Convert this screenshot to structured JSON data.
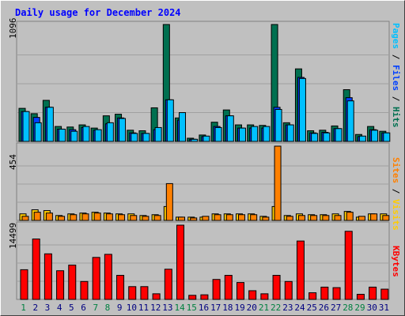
{
  "title": "Daily usage for December 2024",
  "panels": [
    {
      "max_label": "1096",
      "legend": [
        {
          "text": "Pages",
          "color": "#00c0ff"
        },
        {
          "text": " / ",
          "color": "#000000"
        },
        {
          "text": "Files",
          "color": "#0040ff"
        },
        {
          "text": " / ",
          "color": "#000000"
        },
        {
          "text": "Hits",
          "color": "#007050"
        }
      ]
    },
    {
      "max_label": "454",
      "legend": [
        {
          "text": "Sites",
          "color": "#ff8000"
        },
        {
          "text": " / ",
          "color": "#000000"
        },
        {
          "text": "Visits",
          "color": "#ffcc00"
        }
      ]
    },
    {
      "max_label": "14499",
      "legend": [
        {
          "text": "KBytes",
          "color": "#ff0000"
        }
      ]
    }
  ],
  "colors": {
    "hits": "#007050",
    "files": "#0040ff",
    "pages": "#00c0ff",
    "visits": "#ffcc00",
    "sites": "#ff8000",
    "kbytes": "#ff0000",
    "weekend_day": "#008040",
    "weekday_day": "#000080"
  },
  "chart_data": [
    {
      "type": "bar",
      "title": "Daily usage for December 2024",
      "categories": [
        "1",
        "2",
        "3",
        "4",
        "5",
        "6",
        "7",
        "8",
        "9",
        "10",
        "11",
        "12",
        "13",
        "14",
        "15",
        "16",
        "17",
        "18",
        "19",
        "20",
        "21",
        "22",
        "23",
        "24",
        "25",
        "26",
        "27",
        "28",
        "29",
        "30",
        "31"
      ],
      "weekend_days": [
        "1",
        "7",
        "8",
        "14",
        "15",
        "21",
        "22",
        "28",
        "29"
      ],
      "ylim": [
        0,
        1096
      ],
      "series": [
        {
          "name": "Hits",
          "values": [
            310,
            260,
            385,
            140,
            135,
            155,
            125,
            240,
            255,
            105,
            100,
            315,
            1096,
            220,
            30,
            60,
            180,
            295,
            155,
            155,
            150,
            1096,
            175,
            680,
            100,
            105,
            145,
            485,
            65,
            140,
            95
          ]
        },
        {
          "name": "Files",
          "values": [
            280,
            225,
            320,
            115,
            110,
            130,
            105,
            165,
            220,
            80,
            75,
            110,
            390,
            200,
            20,
            45,
            140,
            240,
            125,
            125,
            125,
            320,
            155,
            600,
            80,
            85,
            120,
            410,
            45,
            110,
            80
          ]
        },
        {
          "name": "Pages",
          "values": [
            280,
            175,
            320,
            115,
            95,
            140,
            110,
            175,
            215,
            75,
            75,
            130,
            390,
            270,
            20,
            50,
            130,
            240,
            125,
            140,
            140,
            300,
            155,
            590,
            75,
            80,
            120,
            380,
            50,
            105,
            80
          ]
        }
      ]
    },
    {
      "type": "bar",
      "categories": [
        "1",
        "2",
        "3",
        "4",
        "5",
        "6",
        "7",
        "8",
        "9",
        "10",
        "11",
        "12",
        "13",
        "14",
        "15",
        "16",
        "17",
        "18",
        "19",
        "20",
        "21",
        "22",
        "23",
        "24",
        "25",
        "26",
        "27",
        "28",
        "29",
        "30",
        "31"
      ],
      "ylim": [
        0,
        454
      ],
      "series": [
        {
          "name": "Visits",
          "values": [
            40,
            65,
            60,
            30,
            40,
            45,
            50,
            45,
            40,
            40,
            30,
            35,
            85,
            20,
            20,
            20,
            40,
            40,
            40,
            40,
            25,
            85,
            30,
            40,
            35,
            35,
            40,
            55,
            20,
            40,
            40
          ]
        },
        {
          "name": "Sites",
          "values": [
            25,
            50,
            45,
            25,
            35,
            40,
            45,
            40,
            35,
            30,
            25,
            30,
            225,
            20,
            15,
            25,
            35,
            35,
            35,
            35,
            20,
            454,
            25,
            30,
            30,
            30,
            30,
            50,
            25,
            40,
            30
          ]
        }
      ]
    },
    {
      "type": "bar",
      "categories": [
        "1",
        "2",
        "3",
        "4",
        "5",
        "6",
        "7",
        "8",
        "9",
        "10",
        "11",
        "12",
        "13",
        "14",
        "15",
        "16",
        "17",
        "18",
        "19",
        "20",
        "21",
        "22",
        "23",
        "24",
        "25",
        "26",
        "27",
        "28",
        "29",
        "30",
        "31"
      ],
      "ylim": [
        0,
        14499
      ],
      "series": [
        {
          "name": "KBytes",
          "values": [
            5800,
            11800,
            8900,
            5600,
            6700,
            3500,
            8200,
            8800,
            4700,
            2500,
            2500,
            1100,
            5900,
            14499,
            800,
            900,
            3900,
            4700,
            3300,
            1700,
            1100,
            4700,
            3500,
            11400,
            1300,
            2400,
            2300,
            13300,
            1000,
            2400,
            2000
          ]
        }
      ]
    }
  ]
}
